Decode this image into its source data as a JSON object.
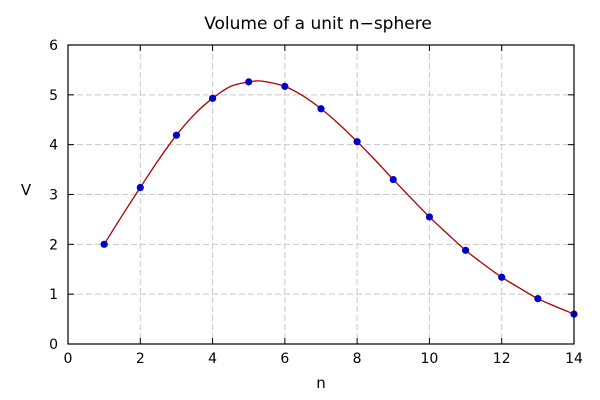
{
  "chart_data": {
    "type": "line",
    "title": "Volume of a unit n−sphere",
    "xlabel": "n",
    "ylabel": "V",
    "xlim": [
      0,
      14
    ],
    "ylim": [
      0,
      6
    ],
    "xticks": [
      0,
      2,
      4,
      6,
      8,
      10,
      12,
      14
    ],
    "yticks": [
      0,
      1,
      2,
      3,
      4,
      5,
      6
    ],
    "grid": true,
    "series": [
      {
        "style": "points",
        "color": "#0000cc",
        "x": [
          1,
          2,
          3,
          4,
          5,
          6,
          7,
          8,
          9,
          10,
          11,
          12,
          13,
          14
        ],
        "y": [
          2.0,
          3.14,
          4.19,
          4.93,
          5.26,
          5.17,
          4.72,
          4.06,
          3.3,
          2.55,
          1.88,
          1.34,
          0.91,
          0.6
        ]
      },
      {
        "style": "curve",
        "color": "#aa0000",
        "x": [
          1,
          1.5,
          2,
          2.5,
          3,
          3.5,
          4,
          4.5,
          5,
          5.26,
          5.5,
          6,
          6.5,
          7,
          7.5,
          8,
          8.5,
          9,
          9.5,
          10,
          10.5,
          11,
          11.5,
          12,
          12.5,
          13,
          13.5,
          14
        ],
        "y": [
          2.0,
          2.58,
          3.14,
          3.69,
          4.19,
          4.61,
          4.93,
          5.17,
          5.26,
          5.28,
          5.26,
          5.17,
          4.98,
          4.72,
          4.41,
          4.06,
          3.69,
          3.3,
          2.92,
          2.55,
          2.21,
          1.88,
          1.6,
          1.34,
          1.12,
          0.91,
          0.75,
          0.6
        ]
      }
    ]
  }
}
